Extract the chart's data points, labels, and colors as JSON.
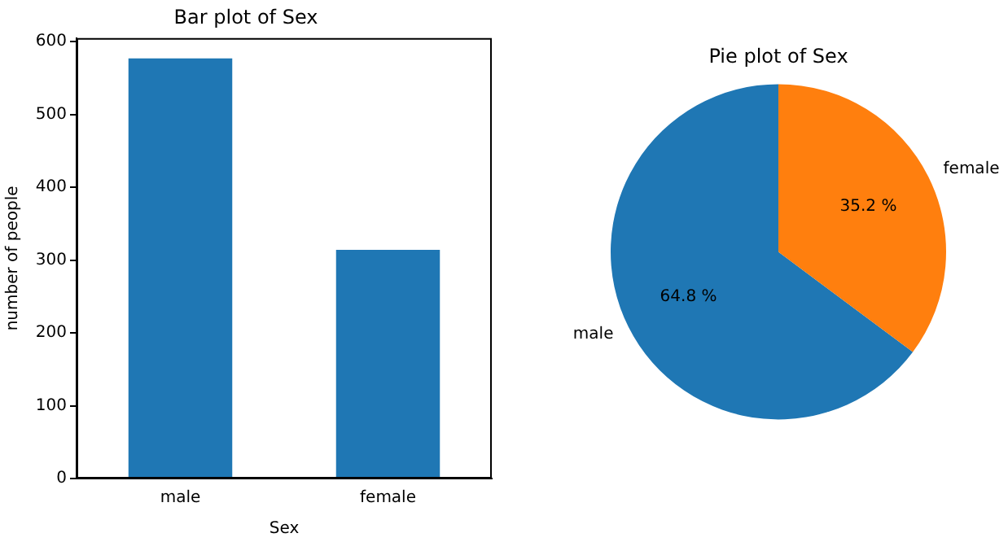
{
  "chart_data": [
    {
      "type": "bar",
      "title": "Bar plot of Sex",
      "xlabel": "Sex",
      "ylabel": "number of people",
      "categories": [
        "male",
        "female"
      ],
      "values": [
        577,
        314
      ],
      "color": "#1f77b4",
      "ylim": [
        0,
        605
      ],
      "yticks": [
        0,
        100,
        200,
        300,
        400,
        500,
        600
      ],
      "grid": false,
      "legend": false
    },
    {
      "type": "pie",
      "title": "Pie plot of Sex",
      "categories": [
        "male",
        "female"
      ],
      "values": [
        64.8,
        35.2
      ],
      "colors": [
        "#1f77b4",
        "#ff7f0e"
      ],
      "value_labels": [
        "64.8 %",
        "35.2 %"
      ],
      "legend": false
    }
  ]
}
